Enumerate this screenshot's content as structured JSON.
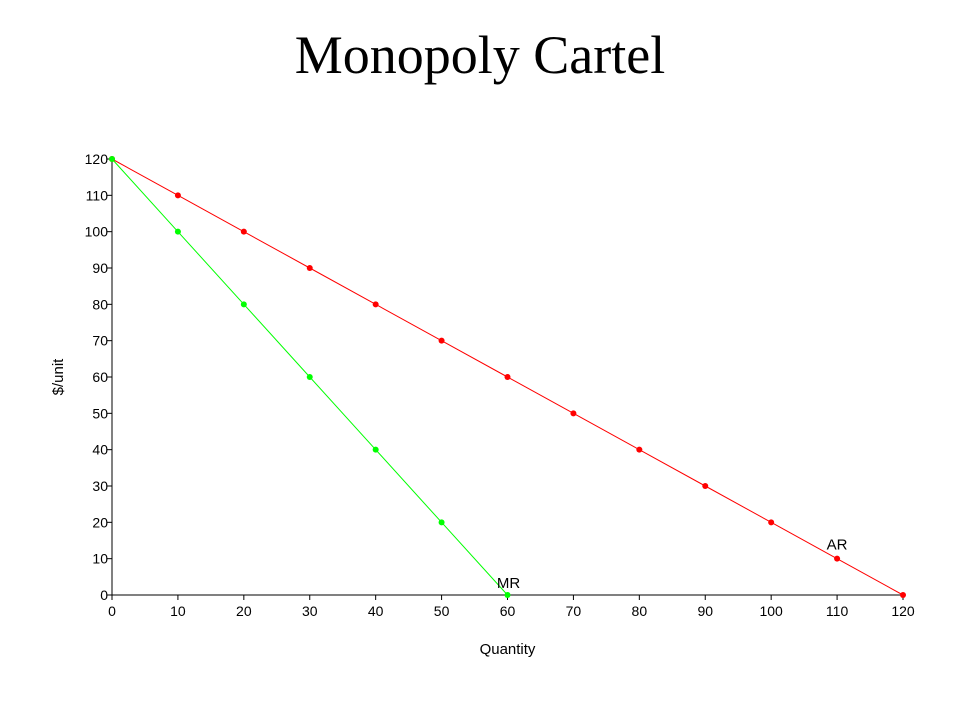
{
  "slide": {
    "title": "Monopoly Cartel"
  },
  "chart_data": {
    "type": "line",
    "title": "",
    "xlabel": "Quantity",
    "ylabel": "$/unit",
    "xlim": [
      0,
      120
    ],
    "ylim": [
      0,
      120
    ],
    "x_ticks": [
      0,
      10,
      20,
      30,
      40,
      50,
      60,
      70,
      80,
      90,
      100,
      110,
      120
    ],
    "y_ticks": [
      0,
      10,
      20,
      30,
      40,
      50,
      60,
      70,
      80,
      90,
      100,
      110,
      120
    ],
    "grid": false,
    "series": [
      {
        "name": "AR",
        "color": "#ff0000",
        "x": [
          0,
          10,
          20,
          30,
          40,
          50,
          60,
          70,
          80,
          90,
          100,
          110,
          120
        ],
        "y": [
          120,
          110,
          100,
          90,
          80,
          70,
          60,
          50,
          40,
          30,
          20,
          10,
          0
        ]
      },
      {
        "name": "MR",
        "color": "#00ff00",
        "x": [
          0,
          10,
          20,
          30,
          40,
          50,
          60
        ],
        "y": [
          120,
          100,
          80,
          60,
          40,
          20,
          0
        ]
      }
    ]
  }
}
